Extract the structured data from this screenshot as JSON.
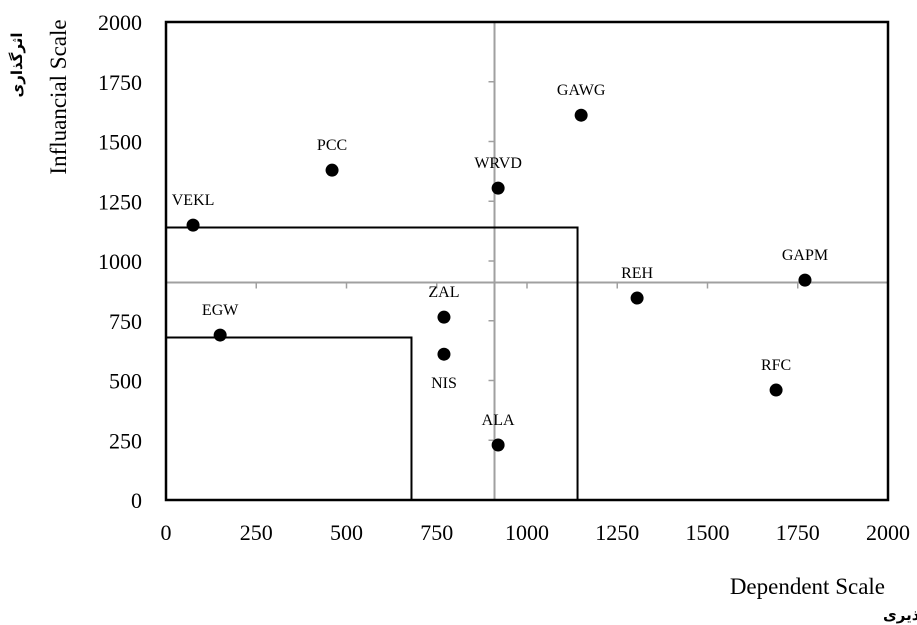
{
  "chart_data": {
    "type": "scatter",
    "xlabel": "Dependent Scale",
    "xlabel_fa": "اثرپذیری",
    "ylabel": "Influancial Scale",
    "ylabel_fa": "اثرگذاری",
    "xlim": [
      0,
      2000
    ],
    "ylim": [
      0,
      2000
    ],
    "x_ticks": [
      "0",
      "250",
      "500",
      "750",
      "1000",
      "1250",
      "1500",
      "1750",
      "2000"
    ],
    "y_ticks": [
      "0",
      "250",
      "500",
      "750",
      "1000",
      "1250",
      "1500",
      "1750",
      "2000"
    ],
    "reference_lines": {
      "x": 910,
      "y": 910
    },
    "quadrant_boxes": [
      {
        "x_max": 1140,
        "y_max": 1140
      },
      {
        "x_max": 680,
        "y_max": 680
      }
    ],
    "points": [
      {
        "label": "VEKL",
        "x": 75,
        "y": 1150,
        "label_pos": "above"
      },
      {
        "label": "PCC",
        "x": 460,
        "y": 1380,
        "label_pos": "above"
      },
      {
        "label": "WRVD",
        "x": 920,
        "y": 1305,
        "label_pos": "above"
      },
      {
        "label": "GAWG",
        "x": 1150,
        "y": 1610,
        "label_pos": "above"
      },
      {
        "label": "GAPM",
        "x": 1770,
        "y": 920,
        "label_pos": "above"
      },
      {
        "label": "REH",
        "x": 1305,
        "y": 845,
        "label_pos": "above"
      },
      {
        "label": "EGW",
        "x": 150,
        "y": 690,
        "label_pos": "above"
      },
      {
        "label": "ZAL",
        "x": 770,
        "y": 765,
        "label_pos": "above"
      },
      {
        "label": "NIS",
        "x": 770,
        "y": 610,
        "label_pos": "below"
      },
      {
        "label": "ALA",
        "x": 920,
        "y": 230,
        "label_pos": "above"
      },
      {
        "label": "RFC",
        "x": 1690,
        "y": 460,
        "label_pos": "above"
      }
    ],
    "grid": false,
    "legend": "none"
  }
}
